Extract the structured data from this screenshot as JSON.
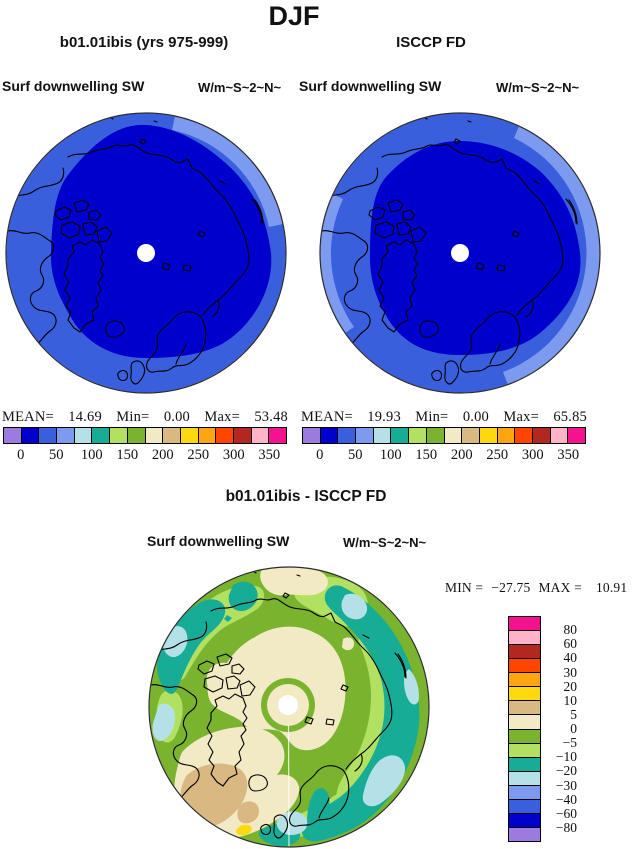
{
  "header": {
    "season_title": "DJF",
    "panel_left_title": "b01.01ibis (yrs 975-999)",
    "panel_right_title": "ISCCP FD",
    "diff_title": "b01.01ibis - ISCCP FD",
    "variable_label": "Surf downwelling SW",
    "units_label": "W/m~S~2~N~"
  },
  "palette": [
    "#9B7BE0",
    "#0000CC",
    "#3A5FDD",
    "#7C9BF0",
    "#B4E1E7",
    "#17AC96",
    "#B2E161",
    "#7AB32E",
    "#F2EAC4",
    "#D9B981",
    "#FFD90F",
    "#FFA512",
    "#FF4500",
    "#B2281E",
    "#FFB3C8",
    "#F5128F"
  ],
  "stats_left": {
    "mean_label": "MEAN=",
    "mean": "14.69",
    "min_label": "Min=",
    "min": "0.00",
    "max_label": "Max=",
    "max": "53.48"
  },
  "stats_right": {
    "mean_label": "MEAN=",
    "mean": "19.93",
    "min_label": "Min=",
    "min": "0.00",
    "max_label": "Max=",
    "max": "65.85"
  },
  "stats_diff": {
    "min_label": "MIN =",
    "min": "−27.75",
    "max_label": "MAX =",
    "max": "10.91"
  },
  "colorbar_h": {
    "orientation": "horizontal",
    "reversed": false,
    "tick_labels": [
      "0",
      "50",
      "100",
      "150",
      "200",
      "250",
      "300",
      "350"
    ],
    "tick_boundaries": [
      1,
      3,
      5,
      7,
      9,
      11,
      13,
      15
    ]
  },
  "colorbar_v": {
    "orientation": "vertical",
    "reversed": true,
    "tick_labels": [
      "80",
      "60",
      "40",
      "30",
      "20",
      "10",
      "5",
      "0",
      "−5",
      "−10",
      "−20",
      "−30",
      "−40",
      "−60",
      "−80"
    ],
    "tick_boundaries": [
      1,
      2,
      3,
      4,
      5,
      6,
      7,
      8,
      9,
      10,
      11,
      12,
      13,
      14,
      15
    ]
  },
  "chart_data": [
    {
      "type": "heatmap",
      "panel": "model",
      "season": "DJF",
      "title": "b01.01ibis (yrs 975-999)",
      "variable": "Surf downwelling SW",
      "units": "W/m~S~2~N~",
      "projection": "north polar stereographic",
      "stats": {
        "mean": 14.69,
        "min": 0.0,
        "max": 53.48
      },
      "contour_levels": [
        0,
        25,
        50,
        75,
        100,
        125,
        150,
        175,
        200,
        225,
        250,
        275,
        300,
        325,
        350
      ],
      "labeled_levels": [
        0,
        50,
        100,
        150,
        200,
        250,
        300,
        350
      ],
      "legend_position": "bottom",
      "field_regions": [
        {
          "range": "0-25",
          "color": "#0000CC",
          "where": "central Arctic cap (polar night), most of disk"
        },
        {
          "range": "25-50",
          "color": "#3A5FDD",
          "where": "outer annulus toward lower latitudes"
        },
        {
          "range": "50-75",
          "color": "#7C9BF0",
          "where": "thin sliver on the northeast rim"
        }
      ]
    },
    {
      "type": "heatmap",
      "panel": "observation",
      "season": "DJF",
      "title": "ISCCP FD",
      "variable": "Surf downwelling SW",
      "units": "W/m~S~2~N~",
      "projection": "north polar stereographic",
      "stats": {
        "mean": 19.93,
        "min": 0.0,
        "max": 65.85
      },
      "contour_levels": [
        0,
        25,
        50,
        75,
        100,
        125,
        150,
        175,
        200,
        225,
        250,
        275,
        300,
        325,
        350
      ],
      "labeled_levels": [
        0,
        50,
        100,
        150,
        200,
        250,
        300,
        350
      ],
      "legend_position": "bottom",
      "field_regions": [
        {
          "range": "0-25",
          "color": "#0000CC",
          "where": "central Arctic cap, slightly smaller than model"
        },
        {
          "range": "25-50",
          "color": "#3A5FDD",
          "where": "outer annulus, wider than model"
        },
        {
          "range": "50-75",
          "color": "#7C9BF0",
          "where": "band along east rim and patch on west rim"
        }
      ]
    },
    {
      "type": "heatmap",
      "panel": "difference",
      "season": "DJF",
      "title": "b01.01ibis - ISCCP FD",
      "variable": "Surf downwelling SW",
      "units": "W/m~S~2~N~",
      "projection": "north polar stereographic",
      "stats": {
        "min": -27.75,
        "max": 10.91
      },
      "contour_levels": [
        -80,
        -60,
        -40,
        -30,
        -20,
        -10,
        -5,
        0,
        5,
        10,
        20,
        30,
        40,
        60,
        80
      ],
      "legend_position": "right",
      "field_regions": [
        {
          "range": "-5-0",
          "color": "#7AB32E",
          "where": "dominant background over most of the disk"
        },
        {
          "range": "0-5",
          "color": "#F2EAC4",
          "where": "central Arctic ring around pole, top-center patch, large bottom-left sector"
        },
        {
          "range": "5-10",
          "color": "#D9B981",
          "where": "bottom-left (North Atlantic sector)"
        },
        {
          "range": "10-20",
          "color": "#FFD90F",
          "where": "tiny spot near bottom-left rim"
        },
        {
          "range": "-10--5",
          "color": "#B2E161",
          "where": "transitional bands along upper and right rim"
        },
        {
          "range": "-20--10",
          "color": "#17AC96",
          "where": "broad bands along left, upper-right, right and bottom rim; Baltic"
        },
        {
          "range": "-30--20",
          "color": "#B4E1E7",
          "where": "patches embedded in the rim bands"
        }
      ]
    }
  ]
}
